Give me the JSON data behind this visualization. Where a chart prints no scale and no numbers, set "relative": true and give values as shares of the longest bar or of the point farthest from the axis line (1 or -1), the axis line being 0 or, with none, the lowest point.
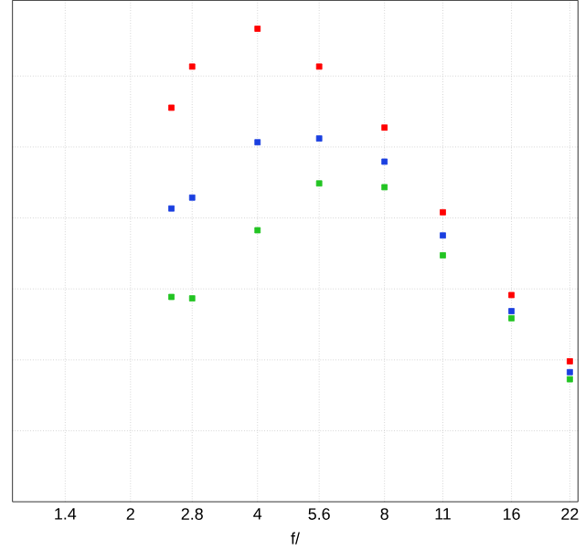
{
  "chart_data": {
    "type": "scatter",
    "xlabel": "f/",
    "relative": true,
    "log": "x",
    "xlim": [
      1.05,
      23
    ],
    "xticks": [
      1.4,
      2,
      2.8,
      4,
      5.6,
      8,
      11,
      16,
      22
    ],
    "marker": "square",
    "grid": true,
    "tick_labels": "x",
    "x": [
      2.5,
      2.8,
      4,
      5.6,
      8,
      11,
      16,
      22
    ],
    "series": [
      {
        "color": "#ff0000",
        "values": [
          0.833,
          0.92,
          1,
          0.92,
          0.791,
          0.612,
          0.437,
          0.297
        ]
      },
      {
        "color": "#1a3fe0",
        "values": [
          0.62,
          0.643,
          0.76,
          0.768,
          0.719,
          0.563,
          0.403,
          0.274
        ]
      },
      {
        "color": "#22c422",
        "values": [
          0.433,
          0.43,
          0.574,
          0.673,
          0.665,
          0.521,
          0.388,
          0.259
        ]
      }
    ]
  }
}
